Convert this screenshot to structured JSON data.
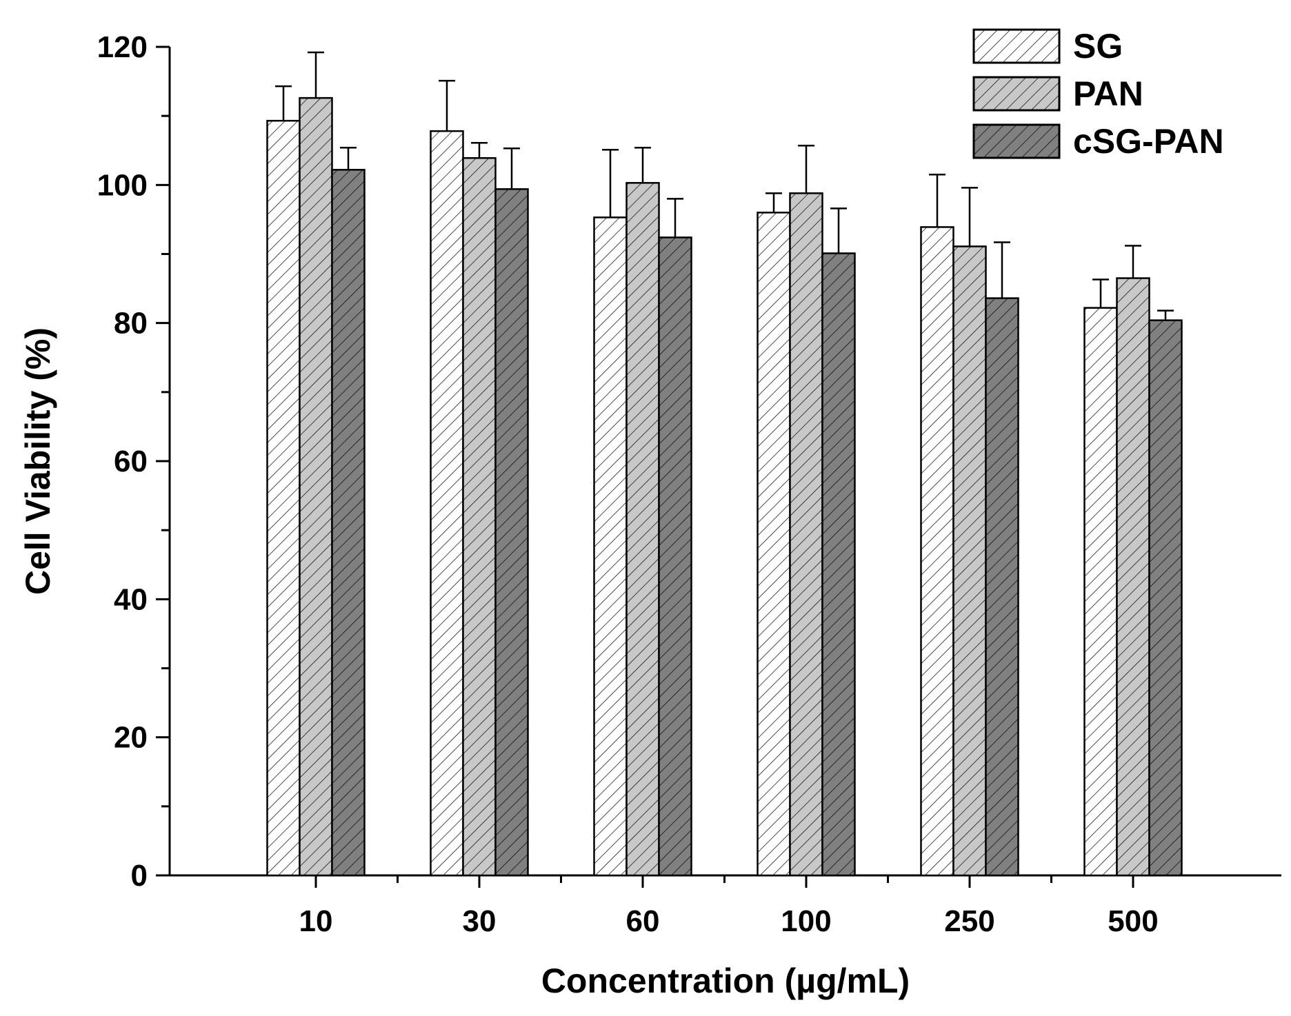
{
  "chart_data": {
    "type": "bar",
    "title": "",
    "xlabel": "Concentration (µg/mL)",
    "ylabel": "Cell Viability (%)",
    "ylim": [
      0,
      120
    ],
    "yticks": [
      0,
      20,
      40,
      60,
      80,
      100,
      120
    ],
    "categories": [
      "10",
      "30",
      "60",
      "100",
      "250",
      "500"
    ],
    "series": [
      {
        "name": "SG",
        "values": [
          109.3,
          107.8,
          95.3,
          96.0,
          93.9,
          82.2
        ],
        "errors": [
          5.0,
          7.3,
          9.8,
          2.8,
          7.6,
          4.1
        ],
        "fill": "#ffffff"
      },
      {
        "name": "PAN",
        "values": [
          112.6,
          103.9,
          100.3,
          98.8,
          91.1,
          86.5
        ],
        "errors": [
          6.6,
          2.2,
          5.1,
          6.9,
          8.5,
          4.7
        ],
        "fill": "#c8c8c8"
      },
      {
        "name": "cSG-PAN",
        "values": [
          102.2,
          99.4,
          92.4,
          90.1,
          83.6,
          80.4
        ],
        "errors": [
          3.2,
          5.9,
          5.6,
          6.5,
          8.1,
          1.4
        ],
        "fill": "#808080"
      }
    ],
    "legend_position": "top-right",
    "hatch": "diagonal"
  }
}
